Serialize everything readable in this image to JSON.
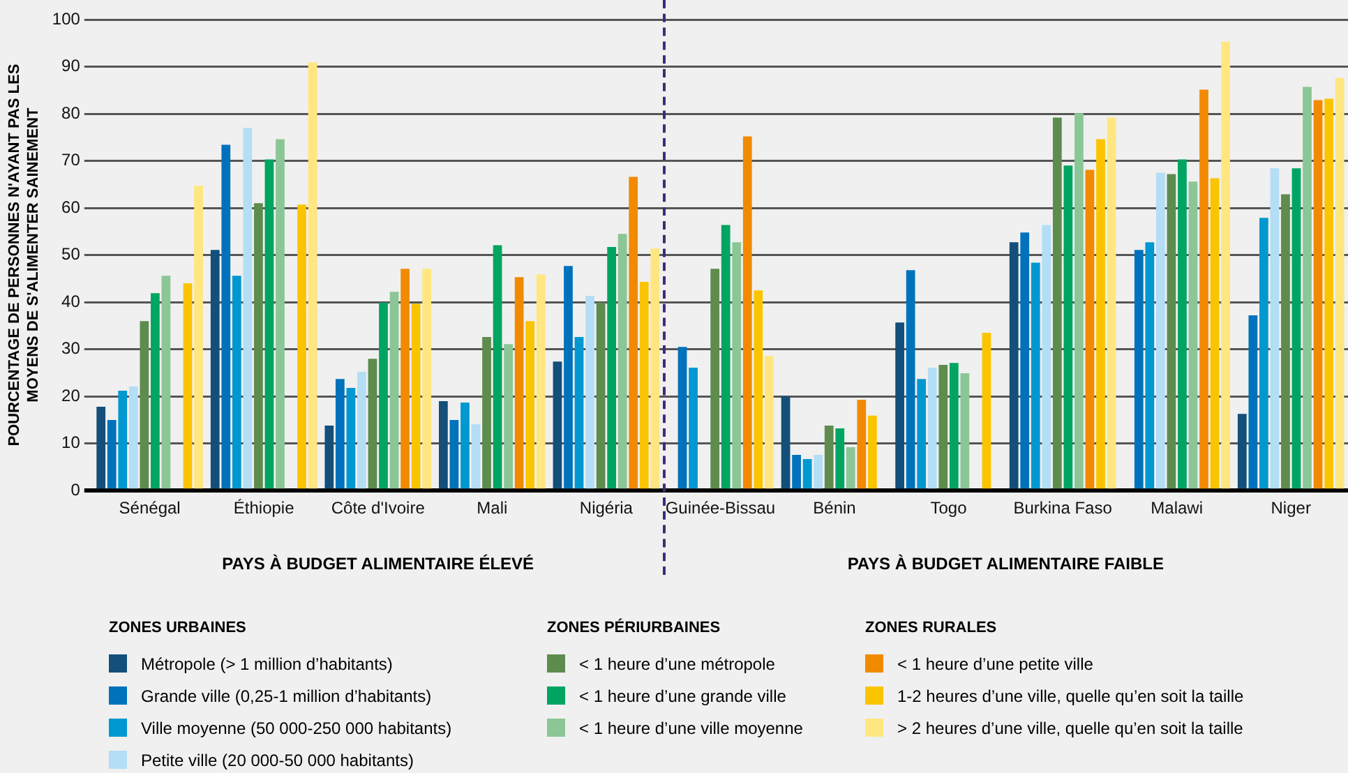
{
  "chart_data": {
    "type": "bar",
    "ylabel": "POURCENTAGE DE PERSONNES N'AYANT PAS LES MOYENS DE S'ALIMENTER SAINEMENT",
    "categories": [
      "Sénégal",
      "Éthiopie",
      "Côte d'Ivoire",
      "Mali",
      "Nigéria",
      "Guinée-Bissau",
      "Bénin",
      "Togo",
      "Burkina Faso",
      "Malawi",
      "Niger"
    ],
    "series": [
      {
        "name": "Métropole (> 1 million d’habitants)",
        "color": "#134f7a",
        "values": [
          17.8,
          51.1,
          13.8,
          19,
          27.4,
          null,
          20,
          35.7,
          52.7,
          null,
          16.3
        ]
      },
      {
        "name": "Grande ville (0,25-1 million d’habitants)",
        "color": "#0072bc",
        "values": [
          15,
          73.4,
          23.7,
          15,
          47.7,
          30.5,
          7.6,
          46.8,
          54.8,
          51.1,
          37.2
        ]
      },
      {
        "name": "Ville moyenne (50 000-250 000 habitants)",
        "color": "#0098d0",
        "values": [
          21.2,
          45.6,
          21.8,
          18.7,
          32.6,
          26.1,
          6.7,
          23.7,
          48.4,
          52.7,
          57.9
        ]
      },
      {
        "name": "Petite ville (20 000-50 000 habitants)",
        "color": "#b3def5",
        "values": [
          22.1,
          77,
          25.2,
          14.1,
          41.3,
          null,
          7.6,
          26.1,
          56.4,
          67.5,
          68.4
        ]
      },
      {
        "name": "< 1 heure d’une métropole",
        "color": "#5e8c4e",
        "values": [
          36,
          61,
          28,
          32.6,
          39.9,
          47.1,
          13.8,
          26.7,
          79.2,
          67.2,
          62.9
        ]
      },
      {
        "name": "< 1 heure d’une grande ville",
        "color": "#00a562",
        "values": [
          41.9,
          70.3,
          39.9,
          52.1,
          51.7,
          56.4,
          13.2,
          27.1,
          69,
          70.3,
          68.4
        ]
      },
      {
        "name": "< 1 heure d’une ville moyenne",
        "color": "#8bc696",
        "values": [
          45.6,
          74.6,
          42.2,
          31.1,
          54.5,
          52.7,
          9.2,
          24.9,
          80.1,
          65.6,
          85.7
        ]
      },
      {
        "name": "< 1 heure d’une petite ville",
        "color": "#f28a00",
        "values": [
          null,
          null,
          47.1,
          45.3,
          66.6,
          75.2,
          19.3,
          null,
          68.1,
          85.1,
          82.9
        ]
      },
      {
        "name": "1-2 heures d’une ville, quelle qu’en soit la taille",
        "color": "#fbc400",
        "values": [
          44,
          60.7,
          39.7,
          36,
          44.3,
          42.5,
          15.9,
          33.5,
          74.6,
          66.3,
          83.2
        ]
      },
      {
        "name": "> 2 heures d’une ville, quelle qu’en soit la taille",
        "color": "#ffe680",
        "values": [
          64.7,
          90.9,
          47.1,
          45.9,
          51.4,
          28.6,
          null,
          null,
          79.2,
          95.3,
          87.6
        ]
      }
    ],
    "ref_lines": [
      {
        "axis": "x",
        "value": "Guinée-Bissau",
        "color": "#3a2e7a",
        "line_style": "dashed"
      }
    ],
    "ylim": [
      0,
      100
    ],
    "yticks": [
      0,
      10,
      20,
      30,
      40,
      50,
      60,
      70,
      80,
      90,
      100
    ],
    "grid": "y",
    "legend": "bottom",
    "annotations": [
      "PAYS À BUDGET ALIMENTAIRE ÉLEVÉ",
      "PAYS À BUDGET ALIMENTAIRE FAIBLE",
      "ZONES URBAINES",
      "ZONES PÉRIURBAINES",
      "ZONES RURALES"
    ]
  }
}
